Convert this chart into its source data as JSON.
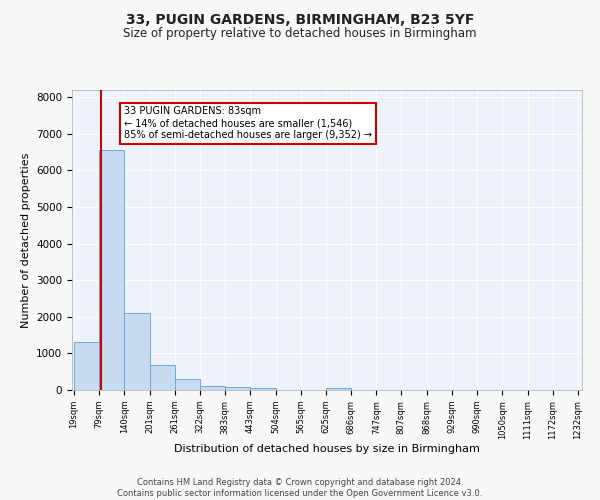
{
  "title": "33, PUGIN GARDENS, BIRMINGHAM, B23 5YF",
  "subtitle": "Size of property relative to detached houses in Birmingham",
  "xlabel": "Distribution of detached houses by size in Birmingham",
  "ylabel": "Number of detached properties",
  "bar_color": "#c8daf0",
  "bar_edge_color": "#6aaad4",
  "vline_color": "#cc0000",
  "vline_x": 83,
  "annotation_text": "33 PUGIN GARDENS: 83sqm\n← 14% of detached houses are smaller (1,546)\n85% of semi-detached houses are larger (9,352) →",
  "annotation_box_color": "#ffffff",
  "annotation_box_edge": "#cc0000",
  "bins": [
    19,
    79,
    140,
    201,
    261,
    322,
    383,
    443,
    504,
    565,
    625,
    686,
    747,
    807,
    868,
    929,
    990,
    1050,
    1111,
    1172,
    1232
  ],
  "counts": [
    1300,
    6550,
    2100,
    680,
    295,
    120,
    70,
    55,
    0,
    0,
    55,
    0,
    0,
    0,
    0,
    0,
    0,
    0,
    0,
    0
  ],
  "ylim": [
    0,
    8200
  ],
  "yticks": [
    0,
    1000,
    2000,
    3000,
    4000,
    5000,
    6000,
    7000,
    8000
  ],
  "background_color": "#eef2fa",
  "grid_color": "#ffffff",
  "footer_line1": "Contains HM Land Registry data © Crown copyright and database right 2024.",
  "footer_line2": "Contains public sector information licensed under the Open Government Licence v3.0."
}
